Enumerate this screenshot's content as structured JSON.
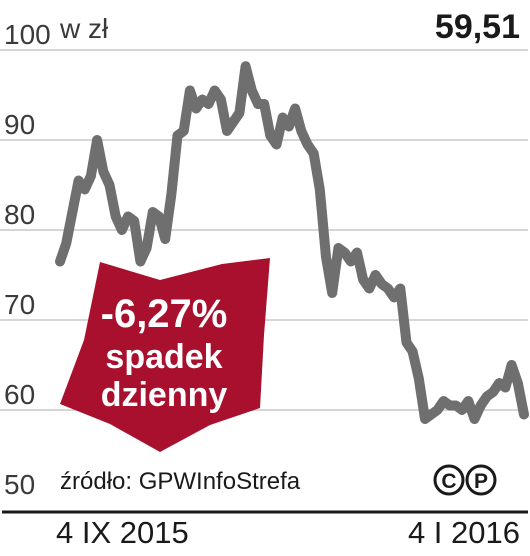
{
  "chart_data": {
    "type": "line",
    "unit_label": "w zł",
    "last_value": "59,51",
    "yticks": [
      "50",
      "60",
      "70",
      "80",
      "90",
      "100"
    ],
    "ylim": [
      50,
      100
    ],
    "x_start_label": "4 IX 2015",
    "x_end_label": "4 I 2016",
    "source": "źródło: GPWInfoStrefa",
    "copyright_marks": [
      "C",
      "P"
    ],
    "badge": {
      "value": "-6,27%",
      "line1": "spadek",
      "line2": "dzienny"
    },
    "colors": {
      "line": "#6f6f6f",
      "grid": "#c8c8c8",
      "badge": "#a8102e",
      "axis": "#1a1a1a"
    },
    "series": [
      {
        "values": [
          76.5,
          78.5,
          82,
          85.5,
          84.5,
          86,
          90,
          86.5,
          85,
          81.5,
          80,
          81.5,
          81,
          76.5,
          78,
          82,
          81.5,
          79,
          84,
          90.5,
          91,
          95.5,
          93.5,
          94.5,
          94,
          95.5,
          94.5,
          91,
          92,
          93,
          98.2,
          95.5,
          94,
          94,
          90.5,
          89.5,
          92.5,
          91.5,
          93.5,
          91,
          89.5,
          88.5,
          84.5,
          77,
          73,
          78,
          77.5,
          76.5,
          77.5,
          74.5,
          73.5,
          75,
          74,
          73.5,
          72.5,
          73.5,
          67.5,
          66.5,
          63.5,
          59,
          59.5,
          60,
          61,
          60.5,
          60.5,
          60,
          61,
          59,
          60.5,
          61.5,
          62,
          63,
          62.5,
          65,
          63,
          59.5
        ]
      }
    ]
  }
}
